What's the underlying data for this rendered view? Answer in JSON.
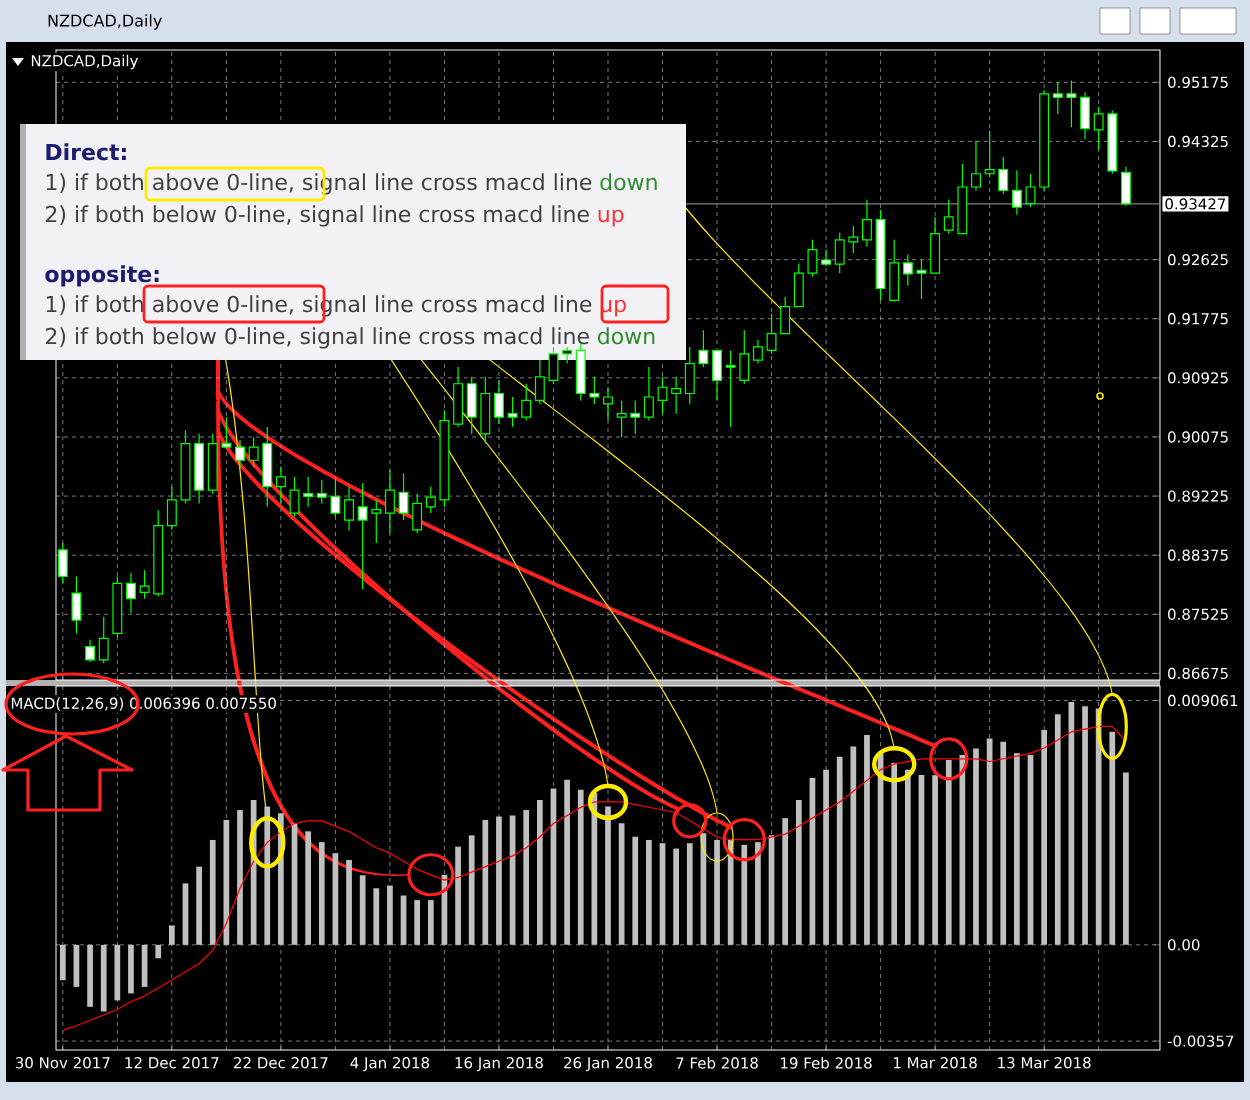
{
  "chart_data": [
    {
      "type": "candlestick",
      "title": "NZDCAD,Daily",
      "subtitle": "NZDCAD,Daily",
      "categories": [
        null,
        null,
        null,
        null,
        null,
        null,
        null,
        null,
        null,
        null,
        null,
        null,
        null,
        null,
        null,
        null,
        null,
        null,
        null,
        null,
        null,
        null,
        null,
        null,
        null,
        null,
        null,
        null,
        null,
        null,
        null,
        null,
        null,
        null,
        null,
        null,
        null,
        null,
        null,
        null,
        null,
        null,
        null,
        null,
        null,
        null,
        null,
        null,
        null,
        null,
        null,
        null,
        null,
        null,
        null,
        null,
        null,
        null,
        null,
        null,
        null,
        null,
        null,
        null,
        null,
        null,
        null,
        null,
        null,
        null,
        null,
        null,
        null,
        null,
        null,
        null,
        null,
        null,
        null
      ],
      "ohlc": [
        [
          0.8845,
          0.8855,
          0.8797,
          0.8807
        ],
        [
          0.8783,
          0.8807,
          0.8725,
          0.8744
        ],
        [
          0.8706,
          0.8716,
          0.8684,
          0.8687
        ],
        [
          0.8687,
          0.8749,
          0.8682,
          0.8718
        ],
        [
          0.8725,
          0.8807,
          0.872,
          0.8797
        ],
        [
          0.8797,
          0.8812,
          0.8754,
          0.8775
        ],
        [
          0.8784,
          0.8816,
          0.8775,
          0.8793
        ],
        [
          0.8782,
          0.8902,
          0.8778,
          0.888
        ],
        [
          0.888,
          0.8936,
          0.8874,
          0.8917
        ],
        [
          0.8917,
          0.9017,
          0.8912,
          0.8998
        ],
        [
          0.8998,
          0.9012,
          0.8912,
          0.8931
        ],
        [
          0.8931,
          0.9012,
          0.8926,
          0.8998
        ],
        [
          0.8998,
          0.9036,
          0.8991,
          0.8993
        ],
        [
          0.8993,
          0.9003,
          0.8964,
          0.8974
        ],
        [
          0.8974,
          0.9007,
          0.8964,
          0.8993
        ],
        [
          0.8998,
          0.9022,
          0.8907,
          0.8936
        ],
        [
          0.8936,
          0.8965,
          0.8912,
          0.895
        ],
        [
          0.8898,
          0.895,
          0.8893,
          0.8931
        ],
        [
          0.8926,
          0.895,
          0.8907,
          0.8922
        ],
        [
          0.8926,
          0.8946,
          0.8912,
          0.8921
        ],
        [
          0.8922,
          0.8946,
          0.8893,
          0.8898
        ],
        [
          0.8888,
          0.8936,
          0.8873,
          0.8917
        ],
        [
          0.8907,
          0.8941,
          0.8788,
          0.8888
        ],
        [
          0.8898,
          0.8917,
          0.8855,
          0.8903
        ],
        [
          0.8898,
          0.896,
          0.8869,
          0.8931
        ],
        [
          0.8928,
          0.8955,
          0.8888,
          0.8898
        ],
        [
          0.8874,
          0.8926,
          0.8869,
          0.8912
        ],
        [
          0.8907,
          0.8936,
          0.8898,
          0.8921
        ],
        [
          0.8917,
          0.9046,
          0.8907,
          0.9031
        ],
        [
          0.9026,
          0.9108,
          0.9022,
          0.9084
        ],
        [
          0.9084,
          0.9094,
          0.9012,
          0.9036
        ],
        [
          0.9012,
          0.9094,
          0.8998,
          0.907
        ],
        [
          0.907,
          0.9089,
          0.9026,
          0.9036
        ],
        [
          0.9041,
          0.9065,
          0.9022,
          0.9036
        ],
        [
          0.9036,
          0.9084,
          0.9031,
          0.906
        ],
        [
          0.906,
          0.9118,
          0.9055,
          0.9094
        ],
        [
          0.9089,
          0.9137,
          0.9084,
          0.9127
        ],
        [
          0.9127,
          0.9137,
          0.9113,
          0.9132
        ],
        [
          0.9132,
          0.9142,
          0.906,
          0.907
        ],
        [
          0.907,
          0.9094,
          0.9055,
          0.9065
        ],
        [
          0.9055,
          0.9079,
          0.9031,
          0.9065
        ],
        [
          0.9036,
          0.906,
          0.9007,
          0.9041
        ],
        [
          0.9041,
          0.906,
          0.9012,
          0.9036
        ],
        [
          0.9036,
          0.9108,
          0.9031,
          0.9065
        ],
        [
          0.906,
          0.9094,
          0.9041,
          0.9079
        ],
        [
          0.907,
          0.9094,
          0.9041,
          0.9077
        ],
        [
          0.907,
          0.9137,
          0.9055,
          0.9113
        ],
        [
          0.9132,
          0.9161,
          0.9108,
          0.9113
        ],
        [
          0.9132,
          0.9132,
          0.906,
          0.9089
        ],
        [
          0.911,
          0.9132,
          0.9022,
          0.9108
        ],
        [
          0.9089,
          0.9161,
          0.9084,
          0.9127
        ],
        [
          0.9118,
          0.9147,
          0.9113,
          0.9137
        ],
        [
          0.9132,
          0.9185,
          0.9127,
          0.9156
        ],
        [
          0.9156,
          0.9209,
          0.9156,
          0.9195
        ],
        [
          0.9195,
          0.9257,
          0.9195,
          0.9243
        ],
        [
          0.9243,
          0.9291,
          0.9238,
          0.9277
        ],
        [
          0.9262,
          0.9277,
          0.9253,
          0.9256
        ],
        [
          0.9256,
          0.9301,
          0.9243,
          0.9291
        ],
        [
          0.9288,
          0.9311,
          0.9272,
          0.9295
        ],
        [
          0.9291,
          0.9349,
          0.9281,
          0.932
        ],
        [
          0.932,
          0.9334,
          0.9204,
          0.9221
        ],
        [
          0.9204,
          0.9291,
          0.9202,
          0.9258
        ],
        [
          0.9258,
          0.927,
          0.9225,
          0.9242
        ],
        [
          0.9247,
          0.9262,
          0.9206,
          0.9243
        ],
        [
          0.9243,
          0.9324,
          0.9243,
          0.93
        ],
        [
          0.9305,
          0.9349,
          0.93,
          0.9324
        ],
        [
          0.93,
          0.94,
          0.93,
          0.9367
        ],
        [
          0.9367,
          0.9434,
          0.9362,
          0.9386
        ],
        [
          0.9386,
          0.9448,
          0.9381,
          0.9392
        ],
        [
          0.9392,
          0.941,
          0.9357,
          0.9362
        ],
        [
          0.9362,
          0.9391,
          0.9327,
          0.9338
        ],
        [
          0.9343,
          0.9386,
          0.9338,
          0.9367
        ],
        [
          0.9367,
          0.9506,
          0.9362,
          0.9501
        ],
        [
          0.9501,
          0.9518,
          0.9472,
          0.9496
        ],
        [
          0.9501,
          0.952,
          0.9453,
          0.9496
        ],
        [
          0.9496,
          0.9503,
          0.9436,
          0.9451
        ],
        [
          0.9449,
          0.9482,
          0.942,
          0.9472
        ],
        [
          0.9472,
          0.9477,
          0.9386,
          0.939
        ],
        [
          0.9388,
          0.9396,
          0.934,
          0.93427
        ]
      ],
      "color": "#00ff00",
      "ylim": [
        0.8658,
        0.9564
      ],
      "yticks": [
        0.86675,
        0.87525,
        0.88375,
        0.89225,
        0.90075,
        0.90925,
        0.91775,
        0.92625,
        0.94325,
        0.95175
      ],
      "grid": true,
      "tick_labels": "y",
      "ref_lines": [
        {
          "axis": "y",
          "value": 0.93427,
          "label": "0.93427",
          "color": "#808080"
        }
      ],
      "annotations": [
        "Direct:",
        "1) if both above 0-line, signal line cross macd line",
        "down",
        "2) if both below 0-line, signal line cross macd line",
        "up",
        "opposite:",
        "1) if both above 0-line, signal line cross macd line",
        "up",
        "2) if both below 0-line, signal line cross macd line",
        "down"
      ]
    },
    {
      "type": "bar",
      "categories": [
        "30 Nov 2017",
        null,
        null,
        null,
        null,
        null,
        null,
        null,
        "12 Dec 2017",
        null,
        null,
        null,
        null,
        null,
        null,
        null,
        "22 Dec 2017",
        null,
        null,
        null,
        null,
        null,
        null,
        null,
        "4 Jan 2018",
        null,
        null,
        null,
        null,
        null,
        null,
        null,
        "16 Jan 2018",
        null,
        null,
        null,
        null,
        null,
        null,
        null,
        "26 Jan 2018",
        null,
        null,
        null,
        null,
        null,
        null,
        null,
        "7 Feb 2018",
        null,
        null,
        null,
        null,
        null,
        null,
        null,
        "19 Feb 2018",
        null,
        null,
        null,
        null,
        null,
        null,
        null,
        "1 Mar 2018",
        null,
        null,
        null,
        null,
        null,
        null,
        null,
        "13 Mar 2018",
        null,
        null,
        null,
        null,
        null,
        null
      ],
      "series": [
        {
          "type": "bar",
          "color": "#c0c0c0",
          "values": [
            -0.00131,
            -0.00156,
            -0.0023,
            -0.00247,
            -0.00206,
            -0.0018,
            -0.00156,
            -0.0005,
            0.00072,
            0.00228,
            0.0029,
            0.00389,
            0.00463,
            0.005,
            0.00537,
            0.00513,
            0.00488,
            0.00451,
            0.00421,
            0.00381,
            0.0034,
            0.00315,
            0.00258,
            0.0021,
            0.0022,
            0.00183,
            0.00166,
            0.00166,
            0.0026,
            0.00364,
            0.00406,
            0.00463,
            0.00476,
            0.0048,
            0.005,
            0.00537,
            0.0058,
            0.00612,
            0.00575,
            0.00563,
            0.00513,
            0.00451,
            0.00401,
            0.00389,
            0.00377,
            0.00357,
            0.00377,
            0.00414,
            0.00389,
            0.00389,
            0.00371,
            0.00381,
            0.00406,
            0.0047,
            0.00537,
            0.00619,
            0.00649,
            0.00698,
            0.00736,
            0.00778,
            0.00711,
            0.00674,
            0.00649,
            0.0063,
            0.00629,
            0.00686,
            0.00704,
            0.00728,
            0.00765,
            0.00753,
            0.00711,
            0.00704,
            0.00797,
            0.00855,
            0.00901,
            0.00885,
            0.00877,
            0.0079,
            0.006396
          ]
        },
        {
          "type": "line",
          "color": "#ff0000",
          "values": [
            -0.00317,
            -0.003,
            -0.0028,
            -0.0026,
            -0.0024,
            -0.0021,
            -0.0019,
            -0.0016,
            -0.0013,
            -0.001,
            -0.0007,
            -0.0002,
            0.0008,
            0.0021,
            0.0031,
            0.0038,
            0.0042,
            0.0045,
            0.0046,
            0.0046,
            0.0044,
            0.0042,
            0.0039,
            0.0036,
            0.0034,
            0.0031,
            0.0028,
            0.0026,
            0.0024,
            0.0025,
            0.0027,
            0.0029,
            0.0031,
            0.0033,
            0.0036,
            0.004,
            0.0045,
            0.0048,
            0.0051,
            0.0053,
            0.0053,
            0.0053,
            0.0052,
            0.0051,
            0.005,
            0.0049,
            0.0046,
            0.0043,
            0.004,
            0.0039,
            0.0039,
            0.0039,
            0.004,
            0.0041,
            0.0044,
            0.0047,
            0.005,
            0.0053,
            0.0057,
            0.0061,
            0.0065,
            0.0067,
            0.0068,
            0.0069,
            0.0069,
            0.0069,
            0.0069,
            0.0069,
            0.0068,
            0.0069,
            0.007,
            0.0071,
            0.0073,
            0.0076,
            0.0079,
            0.008,
            0.0081,
            0.0081,
            0.00755
          ]
        }
      ],
      "ylim": [
        -0.0039,
        0.0096
      ],
      "yticks": [
        -0.00357,
        {
          "value": 0,
          "label": "0.00"
        },
        0.009061
      ],
      "grid": true,
      "annotations": [
        "MACD(12,26,9) 0.006396 0.007550"
      ]
    }
  ]
}
